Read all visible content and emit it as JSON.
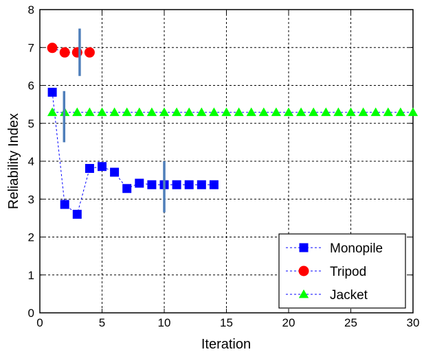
{
  "chart_data": {
    "type": "line",
    "xlabel": "Iteration",
    "ylabel": "Reliability Index",
    "xlim": [
      0,
      30
    ],
    "ylim": [
      0,
      8
    ],
    "xticks": [
      "0",
      "5",
      "10",
      "15",
      "20",
      "25",
      "30"
    ],
    "yticks": [
      "0",
      "1",
      "2",
      "3",
      "4",
      "5",
      "6",
      "7",
      "8"
    ],
    "grid": true,
    "legend_position": "bottom-right",
    "series": [
      {
        "name": "Monopile",
        "marker": "square",
        "color": "#0000ff",
        "x": [
          1,
          2,
          3,
          4,
          5,
          6,
          7,
          8,
          9,
          10,
          11,
          12,
          13,
          14
        ],
        "y": [
          5.82,
          2.86,
          2.6,
          3.81,
          3.86,
          3.71,
          3.28,
          3.42,
          3.38,
          3.38,
          3.38,
          3.38,
          3.38,
          3.38
        ]
      },
      {
        "name": "Tripod",
        "marker": "circle",
        "color": "#ff0000",
        "x": [
          1,
          2,
          3,
          4
        ],
        "y": [
          6.99,
          6.87,
          6.87,
          6.87
        ]
      },
      {
        "name": "Jacket",
        "marker": "triangle",
        "color": "#00ff00",
        "x": [
          1,
          2,
          3,
          4,
          5,
          6,
          7,
          8,
          9,
          10,
          11,
          12,
          13,
          14,
          15,
          16,
          17,
          18,
          19,
          20,
          21,
          22,
          23,
          24,
          25,
          26,
          27,
          28,
          29,
          30
        ],
        "y": [
          5.29,
          5.29,
          5.29,
          5.29,
          5.29,
          5.29,
          5.29,
          5.29,
          5.29,
          5.29,
          5.29,
          5.29,
          5.29,
          5.29,
          5.29,
          5.29,
          5.29,
          5.29,
          5.29,
          5.29,
          5.29,
          5.29,
          5.29,
          5.29,
          5.29,
          5.29,
          5.29,
          5.29,
          5.29,
          5.29
        ]
      }
    ],
    "annotations": {
      "type": "vertical-bar",
      "color": "#4f7fba",
      "bars": [
        {
          "x": 3.2,
          "y_low": 6.25,
          "y_high": 7.5
        },
        {
          "x": 1.95,
          "y_low": 4.5,
          "y_high": 5.85
        },
        {
          "x": 10.0,
          "y_low": 2.65,
          "y_high": 4.0
        }
      ]
    }
  }
}
